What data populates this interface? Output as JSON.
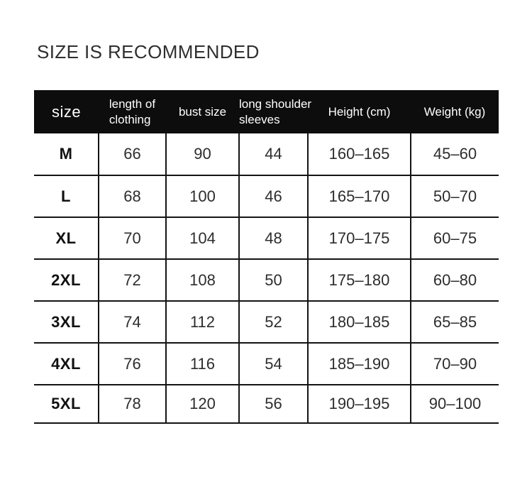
{
  "title": "SIZE IS RECOMMENDED",
  "chart_data": {
    "type": "table",
    "title": "SIZE IS RECOMMENDED",
    "columns": [
      "size",
      "length of clothing",
      "bust size",
      "long shoulder sleeves",
      "Height (cm)",
      "Weight (kg)"
    ],
    "rows": [
      [
        "M",
        "66",
        "90",
        "44",
        "160–165",
        "45–60"
      ],
      [
        "L",
        "68",
        "100",
        "46",
        "165–170",
        "50–70"
      ],
      [
        "XL",
        "70",
        "104",
        "48",
        "170–175",
        "60–75"
      ],
      [
        "2XL",
        "72",
        "108",
        "50",
        "175–180",
        "60–80"
      ],
      [
        "3XL",
        "74",
        "112",
        "52",
        "180–185",
        "65–85"
      ],
      [
        "4XL",
        "76",
        "116",
        "54",
        "185–190",
        "70–90"
      ],
      [
        "5XL",
        "78",
        "120",
        "56",
        "190–195",
        "90–100"
      ]
    ]
  },
  "header_lines": [
    [
      "size"
    ],
    [
      "length of",
      "clothing"
    ],
    [
      "bust size"
    ],
    [
      "long shoulder",
      "sleeves"
    ],
    [
      "Height (cm)"
    ],
    [
      "Weight (kg)"
    ]
  ],
  "colors": {
    "header_bg": "#0d0d0d",
    "header_text": "#ffffff",
    "body_text": "#2d2d2d",
    "border": "#141414",
    "title_text": "#2f2f2f",
    "background": "#ffffff"
  }
}
